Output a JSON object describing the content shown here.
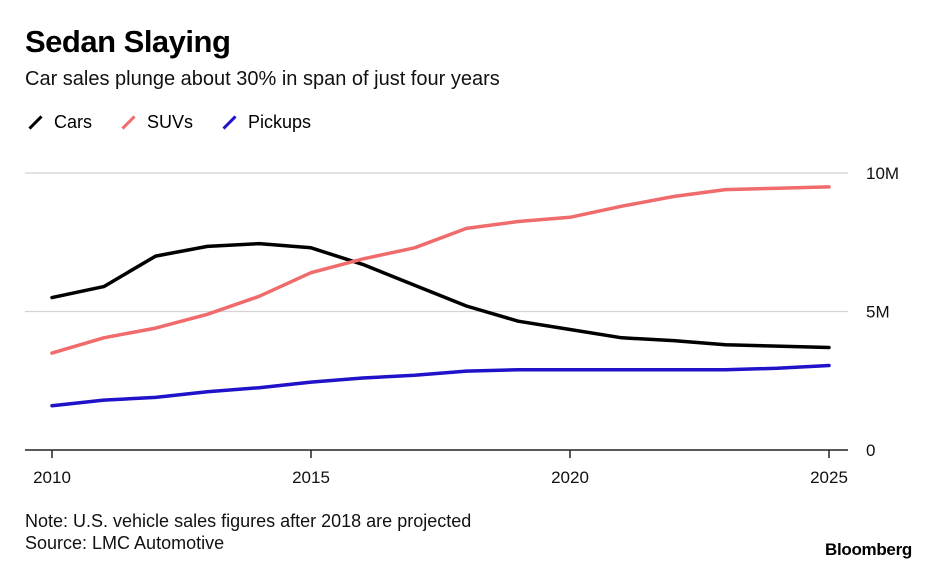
{
  "title": "Sedan Slaying",
  "subtitle": "Car sales plunge about 30% in span of just four years",
  "legend": [
    {
      "label": "Cars",
      "color": "#000000"
    },
    {
      "label": "SUVs",
      "color": "#f06b6b"
    },
    {
      "label": "Pickups",
      "color": "#1f12c9"
    }
  ],
  "note": "Note: U.S. vehicle sales figures after 2018 are projected",
  "source": "Source: LMC Automotive",
  "brand": "Bloomberg",
  "chart_data": {
    "type": "line",
    "title": "Sedan Slaying",
    "subtitle": "Car sales plunge about 30% in span of just four years",
    "x": [
      2010,
      2011,
      2012,
      2013,
      2014,
      2015,
      2016,
      2017,
      2018,
      2019,
      2020,
      2021,
      2022,
      2023,
      2024,
      2025
    ],
    "xlim": [
      2010,
      2025
    ],
    "xticks": [
      2010,
      2015,
      2020,
      2025
    ],
    "ylim": [
      0,
      10
    ],
    "yticks": [
      {
        "value": 0,
        "label": "0"
      },
      {
        "value": 5,
        "label": "5M"
      },
      {
        "value": 10,
        "label": "10M"
      }
    ],
    "grid": true,
    "legend_position": "top-left",
    "series": [
      {
        "name": "Cars",
        "color": "#000000",
        "values": [
          5.5,
          5.9,
          7.0,
          7.35,
          7.45,
          7.3,
          6.7,
          5.95,
          5.2,
          4.65,
          4.35,
          4.05,
          3.95,
          3.8,
          3.75,
          3.7
        ]
      },
      {
        "name": "SUVs",
        "color": "#f06b6b",
        "values": [
          3.5,
          4.05,
          4.4,
          4.9,
          5.55,
          6.4,
          6.9,
          7.3,
          8.0,
          8.25,
          8.4,
          8.8,
          9.15,
          9.4,
          9.45,
          9.5
        ]
      },
      {
        "name": "Pickups",
        "color": "#1f12c9",
        "values": [
          1.6,
          1.8,
          1.9,
          2.1,
          2.25,
          2.45,
          2.6,
          2.7,
          2.85,
          2.9,
          2.9,
          2.9,
          2.9,
          2.9,
          2.95,
          3.05
        ]
      }
    ]
  }
}
